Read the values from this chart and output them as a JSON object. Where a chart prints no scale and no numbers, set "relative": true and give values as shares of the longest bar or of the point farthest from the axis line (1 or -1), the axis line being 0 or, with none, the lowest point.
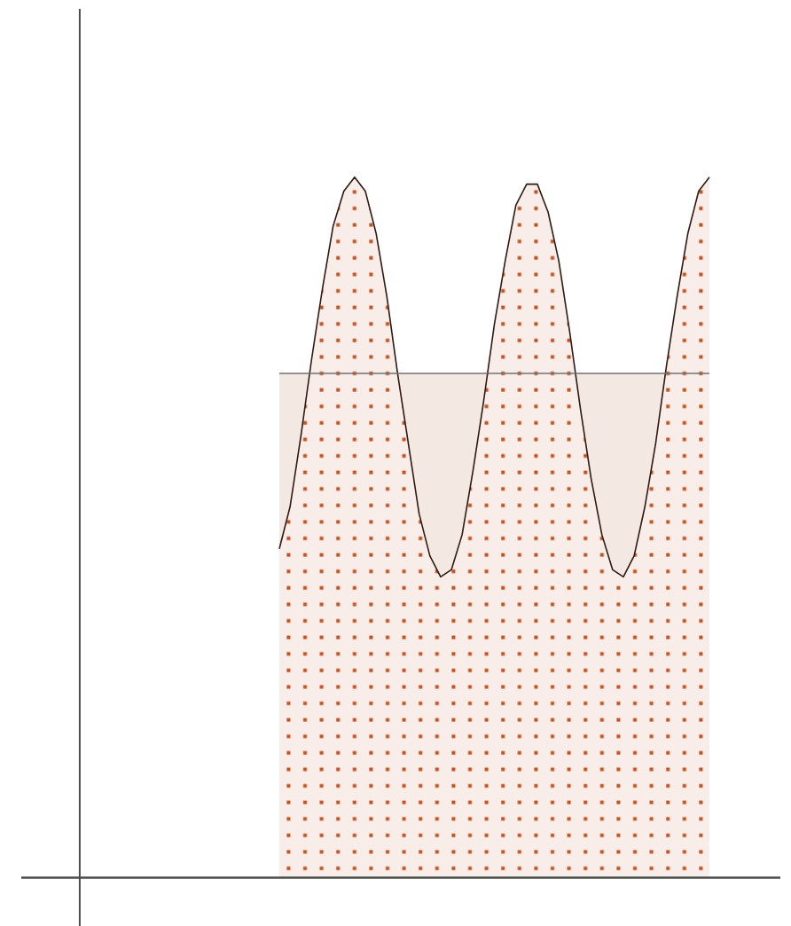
{
  "chart_data": {
    "type": "area",
    "relative": true,
    "categories": [
      null,
      null,
      null,
      null,
      null,
      null,
      null,
      null,
      null,
      null,
      null,
      null,
      null,
      null,
      null,
      null,
      null,
      null,
      null,
      null,
      null,
      null,
      null,
      null,
      null,
      null,
      null,
      null,
      null,
      null,
      null,
      null,
      null,
      null,
      null,
      null,
      null,
      null,
      null,
      null,
      null
    ],
    "series": [
      {
        "color": "#2e1a12",
        "values": [
          0.47,
          0.53,
          0.63,
          0.74,
          0.84,
          0.93,
          0.98,
          1.0,
          0.98,
          0.92,
          0.83,
          0.72,
          0.62,
          0.52,
          0.46,
          0.43,
          0.44,
          0.49,
          0.58,
          0.68,
          0.79,
          0.88,
          0.96,
          0.99,
          0.99,
          0.95,
          0.88,
          0.78,
          0.67,
          0.57,
          0.49,
          0.44,
          0.43,
          0.46,
          0.53,
          0.62,
          0.73,
          0.83,
          0.92,
          0.98,
          1.0
        ]
      }
    ],
    "bands": [
      {
        "axis": "y",
        "from": 0,
        "to": 0.72,
        "color": "#f3e8e2"
      }
    ],
    "ref_lines": [
      {
        "axis": "y",
        "value": 0.72,
        "color": "#707070"
      }
    ]
  }
}
